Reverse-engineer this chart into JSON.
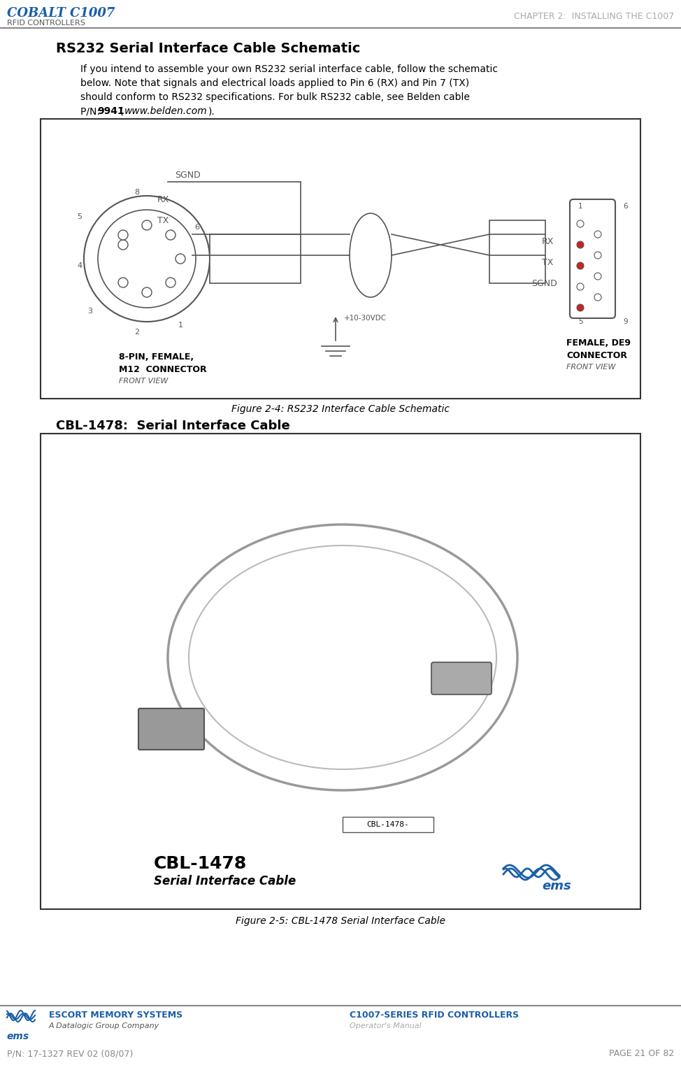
{
  "page_bg": "#ffffff",
  "header_line_color": "#888888",
  "footer_line_color": "#888888",
  "header_title_color": "#aaaaaa",
  "header_logo_color": "#1a5fa8",
  "cobalt_text": "COBALT C1007",
  "rfid_text": "RFID CONTROLLERS",
  "chapter_header": "CHAPTER 2:  INSTALLING THE C1007",
  "section_title": "RS232 Serial Interface Cable Schematic",
  "body_text_line1": "If you intend to assemble your own RS232 serial interface cable, follow the schematic",
  "body_text_line2": "below. Note that signals and electrical loads applied to Pin 6 (RX) and Pin 7 (TX)",
  "body_text_line3": "should conform to RS232 specifications. For bulk RS232 cable, see Belden cable",
  "body_text_line4_pre": "P/N: ",
  "body_text_bold": "9941",
  "body_text_line4_post": " (www.belden.com).",
  "fig1_caption": "Figure 2-4: RS232 Interface Cable Schematic",
  "section2_title": "CBL-1478:  Serial Interface Cable",
  "fig2_caption": "Figure 2-5: CBL-1478 Serial Interface Cable",
  "footer_company": "ESCORT MEMORY SYSTEMS",
  "footer_sub": "A Datalogic Group Company",
  "footer_ems": "ems",
  "footer_product": "C1007-SERIES RFID CONTROLLERS",
  "footer_manual": "Operator's Manual",
  "footer_pn": "P/N: 17-1327 REV 02 (08/07)",
  "footer_page": "PAGE 21 OF 82",
  "box_color": "#000000",
  "schematic_line_color": "#555555",
  "diagram_bg": "#f8f8f8"
}
